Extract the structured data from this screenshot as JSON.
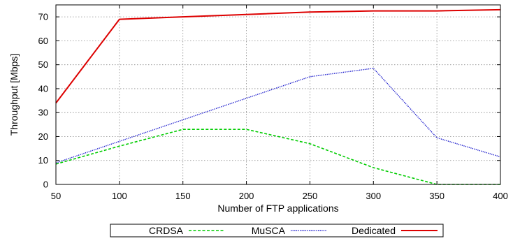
{
  "chart_data": {
    "type": "line",
    "title": "",
    "xlabel": "Number of FTP applications",
    "ylabel": "Throughput [Mbps]",
    "x": [
      50,
      100,
      150,
      200,
      250,
      300,
      350,
      400
    ],
    "xlim": [
      50,
      400
    ],
    "ylim": [
      0,
      75
    ],
    "xticks": [
      "50",
      "100",
      "150",
      "200",
      "250",
      "300",
      "350",
      "400"
    ],
    "yticks": [
      "0",
      "10",
      "20",
      "30",
      "40",
      "50",
      "60",
      "70"
    ],
    "grid": true,
    "legend_position": "bottom",
    "series": [
      {
        "name": "CRDSA",
        "color": "#00cc00",
        "dash": "dashed",
        "values": [
          8.5,
          16,
          23,
          23,
          17,
          7,
          0,
          0
        ]
      },
      {
        "name": "MuSCA",
        "color": "#1a1acc",
        "dash": "dotted",
        "values": [
          9,
          18,
          27,
          36,
          45,
          48.5,
          19.5,
          11.5
        ]
      },
      {
        "name": "Dedicated",
        "color": "#dd0000",
        "dash": "solid",
        "values": [
          34,
          69,
          70,
          71,
          72,
          72.5,
          72.5,
          73
        ]
      }
    ]
  }
}
